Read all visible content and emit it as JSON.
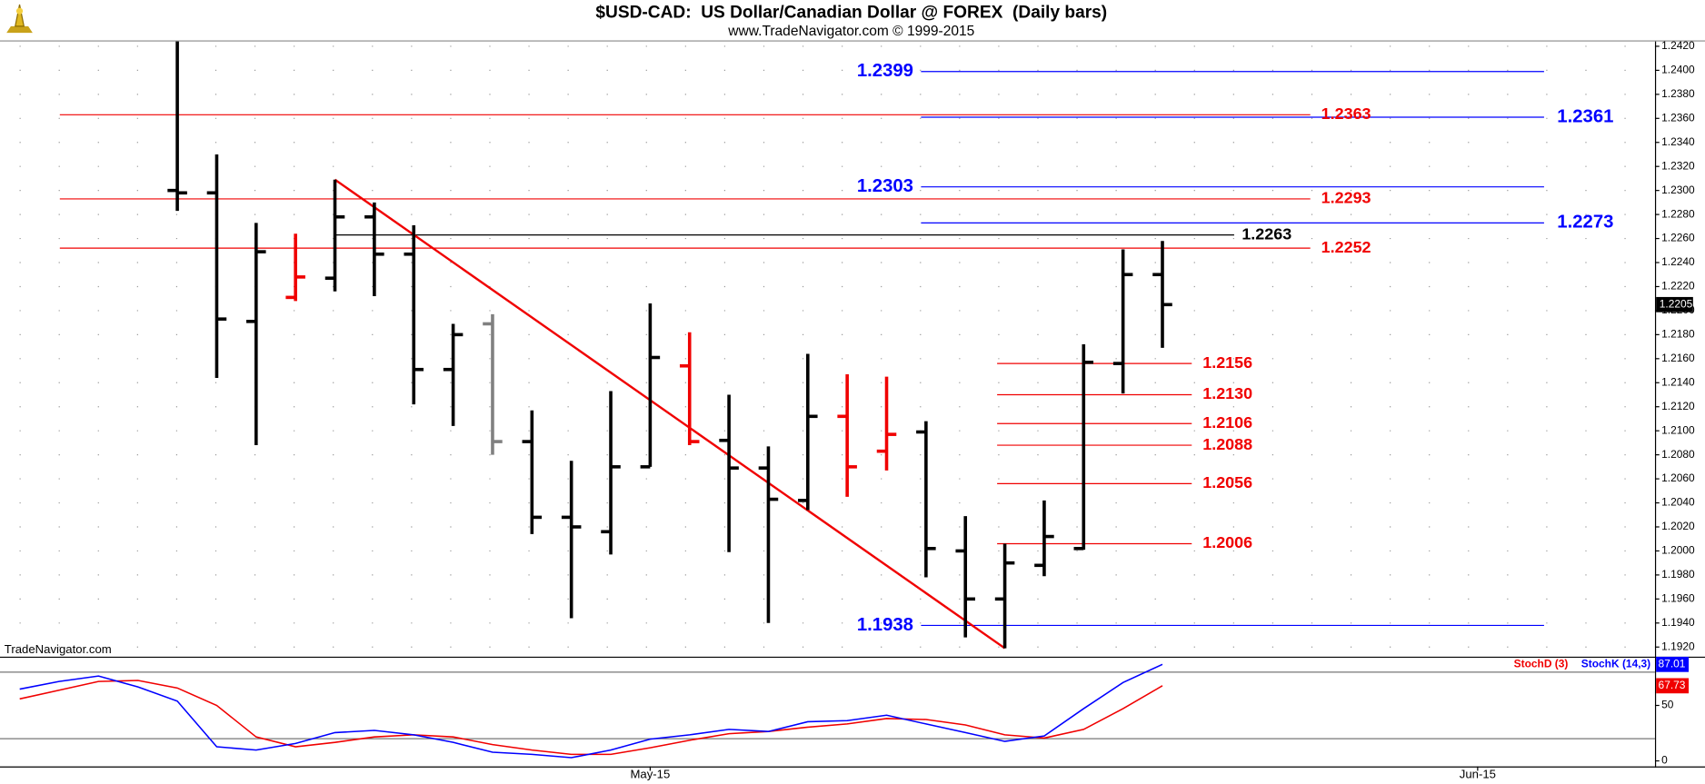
{
  "chart_data": [
    {
      "type": "ohlc",
      "title": "$USD-CAD:  US Dollar/Canadian Dollar @ FOREX  (Daily bars)",
      "subtitle": "www.TradeNavigator.com © 1999-2015",
      "watermark": "TradeNavigator.com",
      "open": [
        null,
        null,
        null,
        null,
        1.23,
        1.2298,
        1.2191,
        1.2211,
        1.2227,
        1.2278,
        1.2247,
        1.2151,
        1.2189,
        1.2091,
        1.2028,
        1.2016,
        1.207,
        1.2154,
        1.2092,
        1.2069,
        1.2042,
        1.2112,
        1.2083,
        1.2099,
        1.2,
        1.196,
        1.1988,
        1.2002,
        1.2156,
        1.223,
        null,
        null,
        null,
        null,
        null,
        null,
        null,
        null,
        null,
        null,
        null,
        null
      ],
      "high": [
        null,
        null,
        null,
        null,
        1.2424,
        1.233,
        1.2273,
        1.2264,
        1.2309,
        1.229,
        1.2271,
        1.2189,
        1.2197,
        1.2117,
        1.2075,
        1.2133,
        1.2206,
        1.2182,
        1.213,
        1.2087,
        1.2164,
        1.2147,
        1.2145,
        1.2108,
        1.2029,
        1.2006,
        1.2042,
        1.2172,
        1.2251,
        1.2258,
        null,
        null,
        null,
        null,
        null,
        null,
        null,
        null,
        null,
        null,
        null,
        null
      ],
      "low": [
        null,
        null,
        null,
        null,
        1.2283,
        1.2144,
        1.2088,
        1.2208,
        1.2216,
        1.2212,
        1.2122,
        1.2104,
        1.208,
        1.2014,
        1.1944,
        1.1997,
        1.207,
        1.2088,
        1.1999,
        1.194,
        1.2034,
        1.2045,
        1.2067,
        1.1978,
        1.1928,
        1.1919,
        1.1979,
        1.2001,
        1.2131,
        1.2169,
        null,
        null,
        null,
        null,
        null,
        null,
        null,
        null,
        null,
        null,
        null,
        null
      ],
      "close": [
        null,
        null,
        null,
        null,
        1.2298,
        1.2193,
        1.2249,
        1.2228,
        1.2278,
        1.2247,
        1.2151,
        1.218,
        1.2091,
        1.2028,
        1.202,
        1.207,
        1.2161,
        1.2091,
        1.2069,
        1.2043,
        1.2112,
        1.207,
        1.2097,
        1.2002,
        1.196,
        1.199,
        1.2012,
        1.2157,
        1.223,
        1.2205,
        null,
        null,
        null,
        null,
        null,
        null,
        null,
        null,
        null,
        null,
        null,
        null
      ],
      "bar_colors": [
        null,
        null,
        null,
        null,
        "#000000",
        "#000000",
        "#000000",
        "#f00000",
        "#000000",
        "#000000",
        "#000000",
        "#000000",
        "#808080",
        "#000000",
        "#000000",
        "#000000",
        "#000000",
        "#f00000",
        "#000000",
        "#000000",
        "#000000",
        "#f00000",
        "#f00000",
        "#000000",
        "#000000",
        "#000000",
        "#000000",
        "#000000",
        "#000000",
        "#000000",
        null,
        null,
        null,
        null,
        null,
        null,
        null,
        null,
        null,
        null,
        null,
        null
      ],
      "ylim": [
        1.1912,
        1.2424
      ],
      "yticks": [
        {
          "value": 1.192,
          "label": "1.1920"
        },
        {
          "value": 1.194,
          "label": "1.1940"
        },
        {
          "value": 1.196,
          "label": "1.1960"
        },
        {
          "value": 1.198,
          "label": "1.1980"
        },
        {
          "value": 1.2,
          "label": "1.2000"
        },
        {
          "value": 1.202,
          "label": "1.2020"
        },
        {
          "value": 1.204,
          "label": "1.2040"
        },
        {
          "value": 1.206,
          "label": "1.2060"
        },
        {
          "value": 1.208,
          "label": "1.2080"
        },
        {
          "value": 1.21,
          "label": "1.2100"
        },
        {
          "value": 1.212,
          "label": "1.2120"
        },
        {
          "value": 1.214,
          "label": "1.2140"
        },
        {
          "value": 1.216,
          "label": "1.2160"
        },
        {
          "value": 1.218,
          "label": "1.2180"
        },
        {
          "value": 1.22,
          "label": "1.2200"
        },
        {
          "value": 1.222,
          "label": "1.2220"
        },
        {
          "value": 1.224,
          "label": "1.2240"
        },
        {
          "value": 1.226,
          "label": "1.2260"
        },
        {
          "value": 1.228,
          "label": "1.2280"
        },
        {
          "value": 1.23,
          "label": "1.2300"
        },
        {
          "value": 1.232,
          "label": "1.2320"
        },
        {
          "value": 1.234,
          "label": "1.2340"
        },
        {
          "value": 1.236,
          "label": "1.2360"
        },
        {
          "value": 1.238,
          "label": "1.2380"
        },
        {
          "value": 1.24,
          "label": "1.2400"
        },
        {
          "value": 1.242,
          "label": "1.2420"
        }
      ],
      "levels": [
        {
          "value": 1.2399,
          "color": "#0000ff"
        },
        {
          "value": 1.2361,
          "color": "#0000ff"
        },
        {
          "value": 1.2303,
          "color": "#0000ff"
        },
        {
          "value": 1.2273,
          "color": "#0000ff"
        },
        {
          "value": 1.1938,
          "color": "#0000ff"
        },
        {
          "value": 1.2363,
          "color": "#f00000"
        },
        {
          "value": 1.2293,
          "color": "#f00000"
        },
        {
          "value": 1.2252,
          "color": "#f00000"
        },
        {
          "value": 1.2263,
          "color": "#000000"
        },
        {
          "value": 1.2156,
          "color": "#f00000"
        },
        {
          "value": 1.213,
          "label": "1.2130",
          "color": "#f00000"
        },
        {
          "value": 1.2106,
          "color": "#f00000"
        },
        {
          "value": 1.2088,
          "color": "#f00000"
        },
        {
          "value": 1.2056,
          "color": "#f00000"
        },
        {
          "value": 1.2006,
          "color": "#f00000"
        }
      ],
      "grid": true
    },
    {
      "type": "line",
      "categories": [
        null,
        null,
        null,
        null,
        null,
        null,
        null,
        null,
        null,
        null,
        null,
        null,
        null,
        null,
        null,
        null,
        "May-15",
        null,
        null,
        null,
        null,
        null,
        null,
        null,
        null,
        null,
        null,
        null,
        null,
        null,
        null,
        null,
        null,
        null,
        null,
        null,
        null,
        "Jun-15",
        null,
        null,
        null,
        null
      ],
      "series": [
        {
          "name": "StochD (3)",
          "color": "#f00000",
          "values": [
            55.9,
            63.7,
            71.6,
            72.5,
            65.7,
            50.0,
            21.6,
            12.7,
            16.7,
            21.6,
            23.5,
            21.6,
            14.7,
            9.8,
            5.9,
            5.9,
            11.8,
            18.6,
            24.5,
            26.5,
            30.4,
            33.3,
            38.2,
            37.3,
            32.4,
            23.5,
            20.6,
            28.4,
            47.1,
            67.73,
            null,
            null,
            null,
            null,
            null,
            null,
            null,
            null,
            null,
            null,
            null,
            null
          ]
        },
        {
          "name": "StochK (14,3)",
          "color": "#0000ff",
          "values": [
            64.7,
            71.6,
            76.5,
            66.7,
            53.9,
            12.7,
            9.8,
            15.7,
            25.5,
            27.5,
            23.5,
            16.7,
            7.8,
            5.9,
            2.9,
            9.8,
            19.6,
            23.5,
            28.4,
            26.5,
            35.3,
            36.3,
            41.2,
            33.3,
            25.5,
            17.6,
            22.5,
            47.1,
            70.6,
            87.01,
            null,
            null,
            null,
            null,
            null,
            null,
            null,
            null,
            null,
            null,
            null,
            null
          ]
        }
      ],
      "ylim": [
        -5,
        92
      ],
      "yticks": [
        0,
        50
      ],
      "levels": [
        20,
        80
      ]
    }
  ]
}
